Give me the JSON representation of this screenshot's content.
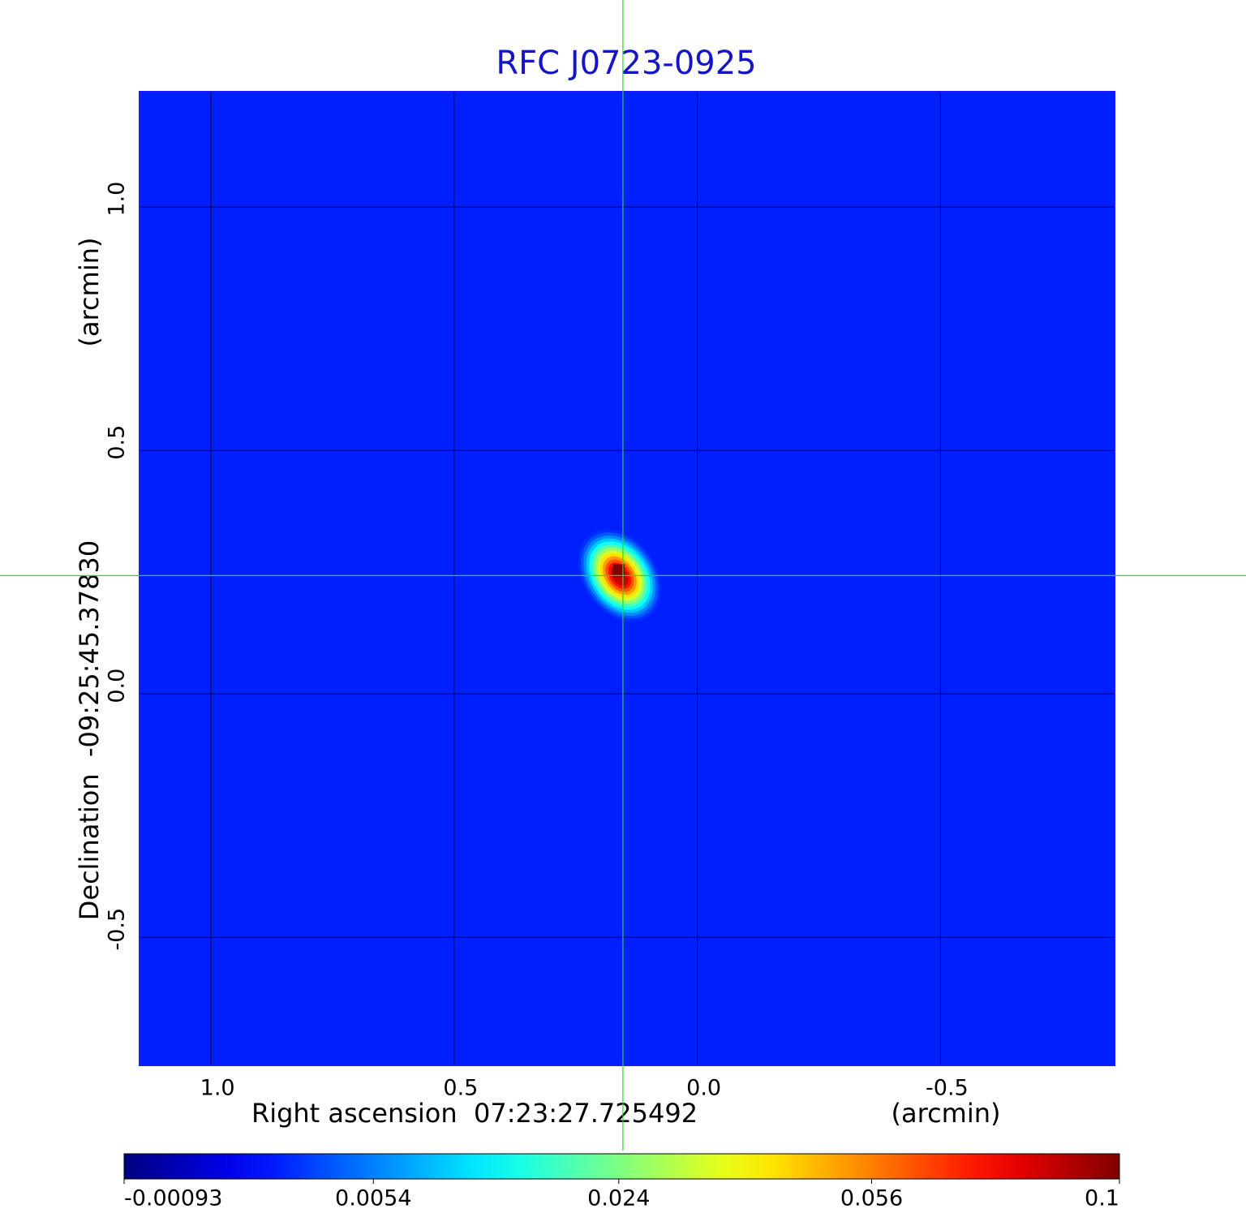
{
  "chart_data": {
    "type": "image",
    "title": "RFC J0723-0925",
    "xlabel": "Right ascension  07:23:27.725492",
    "xunit": "(arcmin)",
    "ylabel": "Declination  -09:25:45.37830",
    "yunit": "(arcmin)",
    "xlim": [
      1.147,
      -0.858
    ],
    "ylim": [
      -0.763,
      1.237
    ],
    "xticks": [
      {
        "value": 1,
        "label": "1.0"
      },
      0.5,
      {
        "value": 0,
        "label": "0.0"
      },
      -0.5
    ],
    "yticks": [
      -0.5,
      {
        "value": 0,
        "label": "0.0"
      },
      0.5,
      {
        "value": 1,
        "label": "1.0"
      }
    ],
    "grid": true,
    "colormap": "jet",
    "color_scale": "sqrt",
    "clim": [
      -0.00093,
      0.1
    ],
    "cticks": [
      -0.00093,
      0.0054,
      0.024,
      0.056,
      0.1
    ],
    "background": 0.0015,
    "source": {
      "x": 0.153,
      "y": 0.243,
      "peak": 0.1
    },
    "crosshair": {
      "x": 0.153,
      "y": 0.243
    }
  }
}
